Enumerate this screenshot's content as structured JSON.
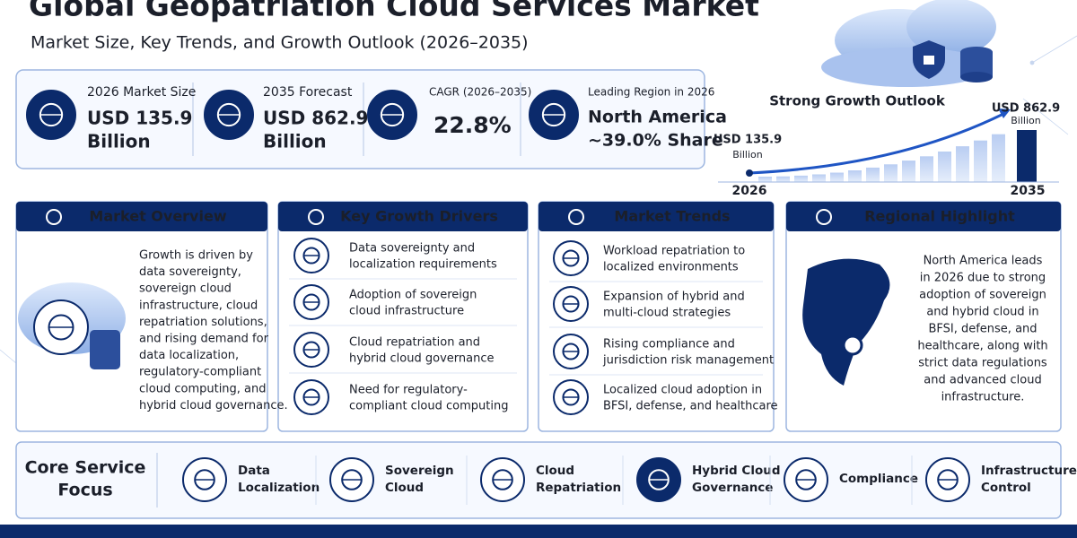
{
  "header": {
    "title": "Global Geopatriation Cloud Services Market",
    "subtitle": "Market Size, Key Trends, and Growth Outlook (2026–2035)"
  },
  "stats": [
    {
      "label": "2026 Market Size",
      "value": [
        "USD 135.9",
        "Billion"
      ]
    },
    {
      "label": "2035 Forecast",
      "value": [
        "USD 862.9",
        "Billion"
      ]
    },
    {
      "label": "CAGR (2026–2035)",
      "value": [
        "22.8%"
      ]
    },
    {
      "label": "Leading Region in 2026",
      "value": [
        "North America",
        "~39.0% Share"
      ]
    }
  ],
  "growth": {
    "title": "Strong Growth Outlook",
    "start": {
      "value": "USD 135.9",
      "unit": "Billion",
      "year": "2026"
    },
    "end": {
      "value": "USD 862.9",
      "unit": "Billion",
      "year": "2035"
    }
  },
  "panels": [
    {
      "title": "Market Overview",
      "lines": [
        "Growth is driven by",
        "data sovereignty,",
        "sovereign cloud",
        "infrastructure, cloud",
        "repatriation solutions,",
        "and rising demand for",
        "data localization,",
        "regulatory-compliant",
        "cloud computing, and",
        "hybrid cloud governance."
      ]
    },
    {
      "title": "Key Growth Drivers",
      "items": [
        [
          "Data sovereignty and",
          "localization requirements"
        ],
        [
          "Adoption of sovereign",
          "cloud infrastructure"
        ],
        [
          "Cloud repatriation and",
          "hybrid cloud governance"
        ],
        [
          "Need for regulatory-",
          "compliant cloud computing"
        ]
      ]
    },
    {
      "title": "Market Trends",
      "items": [
        [
          "Workload repatriation to",
          "localized environments"
        ],
        [
          "Expansion of hybrid and",
          "multi-cloud strategies"
        ],
        [
          "Rising compliance and",
          "jurisdiction risk management"
        ],
        [
          "Localized cloud adoption in",
          "BFSI, defense, and healthcare"
        ]
      ]
    },
    {
      "title": "Regional Highlight",
      "lines": [
        "North America leads",
        "in 2026 due to strong",
        "adoption of sovereign",
        "and hybrid cloud in",
        "BFSI, defense, and",
        "healthcare, along with",
        "strict data regulations",
        "and advanced cloud",
        "infrastructure."
      ]
    }
  ],
  "core": {
    "title": [
      "Core Service",
      "Focus"
    ],
    "items": [
      [
        "Data",
        "Localization"
      ],
      [
        "Sovereign",
        "Cloud"
      ],
      [
        "Cloud",
        "Repatriation"
      ],
      [
        "Hybrid Cloud",
        "Governance"
      ],
      [
        "Compliance"
      ],
      [
        "Infrastructure",
        "Control"
      ]
    ]
  }
}
